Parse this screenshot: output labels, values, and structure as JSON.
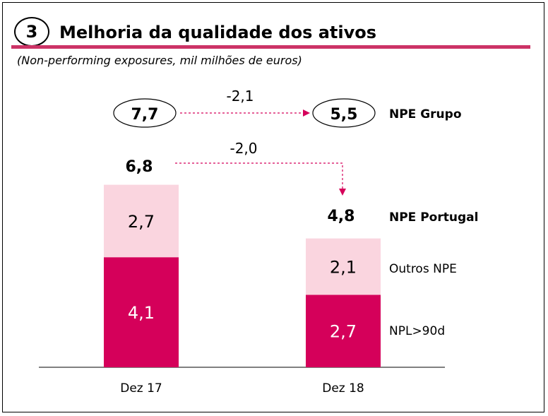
{
  "header": {
    "number": "3",
    "title": "Melhoria da qualidade dos ativos",
    "subtitle": "(Non-performing exposures, mil milhões de euros)"
  },
  "colors": {
    "accent": "#D5005A",
    "light": "#FAD5DF",
    "rule": "#CC3366"
  },
  "chart_data": {
    "type": "bar",
    "stacked": true,
    "title": "Melhoria da qualidade dos ativos",
    "subtitle": "(Non-performing exposures, mil milhões de euros)",
    "categories": [
      "Dez 17",
      "Dez 18"
    ],
    "series": [
      {
        "name": "NPL>90d",
        "values": [
          4.1,
          2.7
        ],
        "labels": [
          "4,1",
          "2,7"
        ],
        "color": "#D5005A"
      },
      {
        "name": "Outros NPE",
        "values": [
          2.7,
          2.1
        ],
        "labels": [
          "2,7",
          "2,1"
        ],
        "color": "#FAD5DF"
      }
    ],
    "totals": {
      "name": "NPE Portugal",
      "values": [
        6.8,
        4.8
      ],
      "labels": [
        "6,8",
        "4,8"
      ]
    },
    "group": {
      "name": "NPE Grupo",
      "values": [
        7.7,
        5.5
      ],
      "labels": [
        "7,7",
        "5,5"
      ]
    },
    "changes": {
      "group": "-2,1",
      "portugal": "-2,0"
    },
    "ylim": [
      0,
      8
    ],
    "xlabel": "",
    "ylabel": ""
  }
}
